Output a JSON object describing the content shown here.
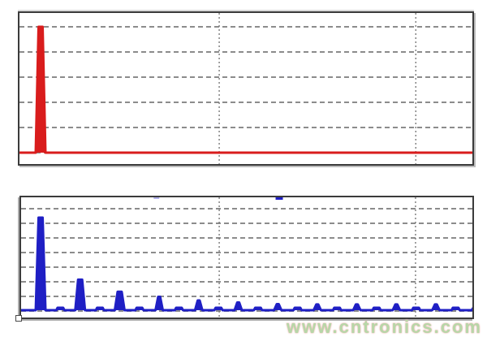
{
  "page": {
    "background": "#ffffff",
    "watermark": {
      "text": "www.cntronics.com",
      "color": "#b7d7a8",
      "glow": "#eeb4b0"
    }
  },
  "chart_data": [
    {
      "id": "top",
      "type": "area",
      "title": "",
      "series_name": "red-spectrum-fundamental-only",
      "line_color": "#d91c1c",
      "axes": {
        "x_tick_labels": [],
        "y_tick_labels": []
      },
      "grid": {
        "style": "dashed-horizontal-dotted-vertical",
        "h_color": "#8c8c8c",
        "v_color": "#707070",
        "h_fracs": [
          0.0914,
          0.2581,
          0.4247,
          0.5914,
          0.7581,
          0.9247
        ],
        "v_fracs": [
          0.441,
          0.875
        ]
      },
      "baseline_frac": 0.9247,
      "unit_frac": 0.8333,
      "peaks": [
        {
          "n": 1,
          "x_frac": 0.0466,
          "amp": 1.0
        }
      ],
      "plateaus": [],
      "border_ticks": []
    },
    {
      "id": "bottom",
      "type": "area",
      "title": "",
      "series_name": "blue-spectrum-harmonics",
      "line_color": "#1f1fc4",
      "axes": {
        "x_tick_labels": [],
        "y_tick_labels": []
      },
      "grid": {
        "style": "dashed-horizontal-dotted-vertical",
        "h_color": "#8c8c8c",
        "v_color": "#707070",
        "h_fracs": [
          0.0946,
          0.2162,
          0.3378,
          0.4595,
          0.5811,
          0.7027,
          0.8243,
          0.9459
        ],
        "v_fracs": [
          0.439,
          0.874
        ]
      },
      "baseline_frac": 0.9392,
      "unit_frac": 0.7703,
      "peaks": [
        {
          "n": 1,
          "x_frac": 0.0432,
          "amp": 1.0
        },
        {
          "n": 2,
          "x_frac": 0.1308,
          "amp": 0.33
        },
        {
          "n": 3,
          "x_frac": 0.2184,
          "amp": 0.2
        },
        {
          "n": 4,
          "x_frac": 0.3059,
          "amp": 0.145
        },
        {
          "n": 5,
          "x_frac": 0.3935,
          "amp": 0.105
        },
        {
          "n": 6,
          "x_frac": 0.4811,
          "amp": 0.083
        },
        {
          "n": 7,
          "x_frac": 0.5687,
          "amp": 0.066
        },
        {
          "n": 8,
          "x_frac": 0.6563,
          "amp": 0.062
        },
        {
          "n": 9,
          "x_frac": 0.7439,
          "amp": 0.062
        },
        {
          "n": 10,
          "x_frac": 0.8315,
          "amp": 0.062
        },
        {
          "n": 11,
          "x_frac": 0.9191,
          "amp": 0.062
        },
        {
          "n": 12,
          "x_frac": 1.0066,
          "amp": 0.044
        }
      ],
      "plateaus": [
        {
          "x_frac": 0.087,
          "amp": 0.026
        },
        {
          "x_frac": 0.1746,
          "amp": 0.026
        },
        {
          "x_frac": 0.2622,
          "amp": 0.026
        },
        {
          "x_frac": 0.3497,
          "amp": 0.026
        },
        {
          "x_frac": 0.4373,
          "amp": 0.026
        },
        {
          "x_frac": 0.5249,
          "amp": 0.026
        },
        {
          "x_frac": 0.6125,
          "amp": 0.026
        },
        {
          "x_frac": 0.7001,
          "amp": 0.026
        },
        {
          "x_frac": 0.7877,
          "amp": 0.026
        },
        {
          "x_frac": 0.8753,
          "amp": 0.026
        },
        {
          "x_frac": 0.9629,
          "amp": 0.026
        }
      ],
      "border_ticks": [
        {
          "x_frac": 0.572,
          "w": 9,
          "h": 3,
          "opacity": 1
        },
        {
          "x_frac": 0.3,
          "w": 7,
          "h": 2,
          "opacity": 0.35
        }
      ]
    }
  ]
}
